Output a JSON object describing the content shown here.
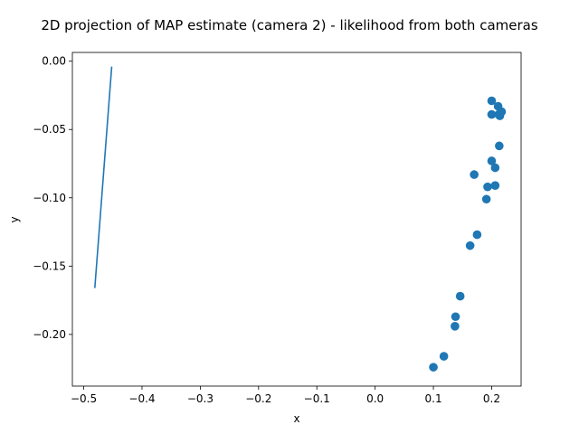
{
  "chart_data": {
    "type": "scatter",
    "title": "2D projection of MAP estimate (camera 2) - likelihood from both cameras",
    "xlabel": "x",
    "ylabel": "y",
    "xlim": [
      -0.5195,
      0.2505
    ],
    "ylim": [
      -0.2378,
      0.0064
    ],
    "grid": false,
    "color": "#1f77b4",
    "x_ticks": [
      {
        "value": -0.5,
        "label": "−0.5"
      },
      {
        "value": -0.4,
        "label": "−0.4"
      },
      {
        "value": -0.3,
        "label": "−0.3"
      },
      {
        "value": -0.2,
        "label": "−0.2"
      },
      {
        "value": -0.1,
        "label": "−0.1"
      },
      {
        "value": 0.0,
        "label": "0.0"
      },
      {
        "value": 0.1,
        "label": "0.1"
      },
      {
        "value": 0.2,
        "label": "0.2"
      }
    ],
    "y_ticks": [
      {
        "value": 0.0,
        "label": "0.00"
      },
      {
        "value": -0.05,
        "label": "−0.05"
      },
      {
        "value": -0.1,
        "label": "−0.10"
      },
      {
        "value": -0.15,
        "label": "−0.15"
      },
      {
        "value": -0.2,
        "label": "−0.20"
      }
    ],
    "line": {
      "x": [
        -0.481,
        -0.452
      ],
      "y": [
        -0.166,
        -0.004
      ]
    },
    "points": {
      "x": [
        0.1,
        0.118,
        0.137,
        0.138,
        0.146,
        0.163,
        0.175,
        0.191,
        0.193,
        0.206,
        0.2,
        0.17,
        0.206,
        0.213,
        0.2,
        0.212,
        0.214,
        0.217,
        0.2,
        0.211
      ],
      "y": [
        -0.224,
        -0.216,
        -0.194,
        -0.187,
        -0.172,
        -0.135,
        -0.127,
        -0.101,
        -0.092,
        -0.091,
        -0.073,
        -0.083,
        -0.078,
        -0.062,
        -0.039,
        -0.039,
        -0.04,
        -0.037,
        -0.029,
        -0.033
      ]
    }
  }
}
